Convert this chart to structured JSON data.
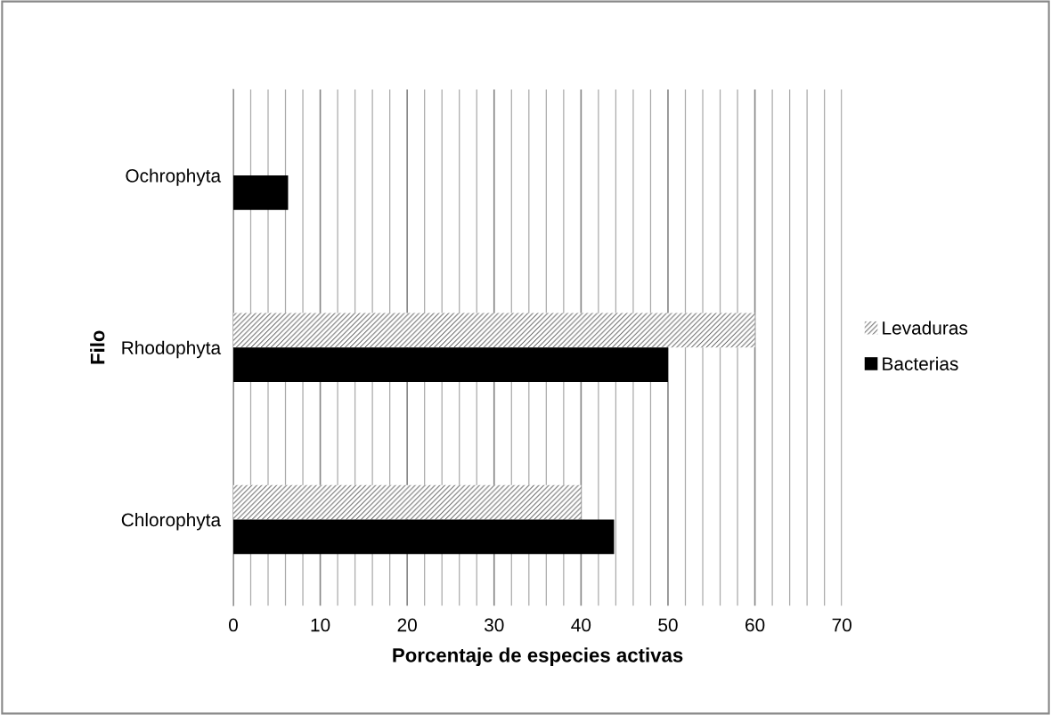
{
  "chart_data": {
    "type": "bar",
    "orientation": "horizontal",
    "xlabel": "Porcentaje de especies activas",
    "ylabel": "Filo",
    "categories": [
      "Ochrophyta",
      "Rhodophyta",
      "Chlorophyta"
    ],
    "series": [
      {
        "name": "Levaduras",
        "color": "#ffffff",
        "values": [
          null,
          60,
          40
        ]
      },
      {
        "name": "Bacterias",
        "color": "#000000",
        "values": [
          6.3,
          50,
          43.8
        ]
      }
    ],
    "xlim": [
      0,
      70
    ],
    "xticks": [
      0,
      10,
      20,
      30,
      40,
      50,
      60,
      70
    ],
    "grid": "x",
    "legend": "right"
  }
}
